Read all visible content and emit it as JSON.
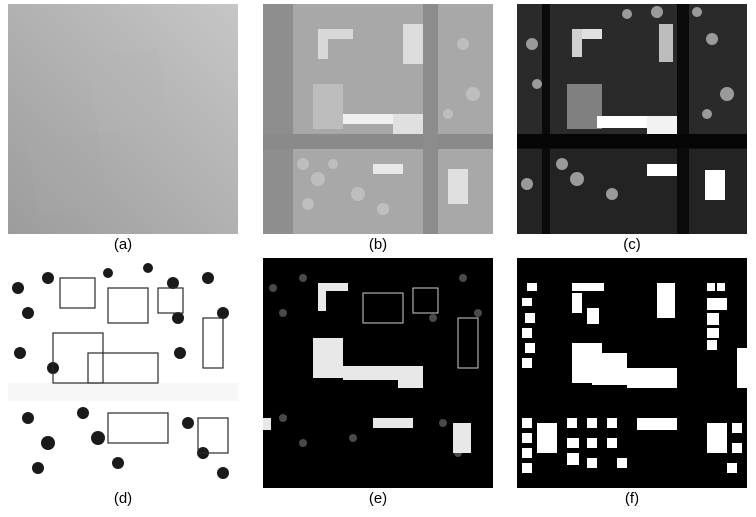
{
  "figure": {
    "panels": [
      {
        "id": "a",
        "caption": "(a)"
      },
      {
        "id": "b",
        "caption": "(b)"
      },
      {
        "id": "c",
        "caption": "(c)"
      },
      {
        "id": "d",
        "caption": "(d)"
      },
      {
        "id": "e",
        "caption": "(e)"
      },
      {
        "id": "f",
        "caption": "(f)"
      }
    ]
  }
}
